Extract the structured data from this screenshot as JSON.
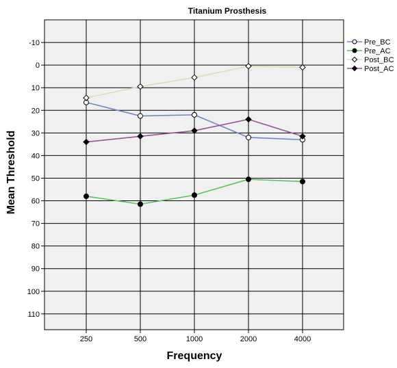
{
  "chart_data": {
    "type": "line",
    "title": "Titanium Prosthesis",
    "xlabel": "Frequency",
    "ylabel": "Mean Threshold",
    "categories": [
      "250",
      "500",
      "1000",
      "2000",
      "4000"
    ],
    "y_ticks": [
      "-10",
      "0",
      "10",
      "20",
      "30",
      "40",
      "50",
      "60",
      "70",
      "80",
      "90",
      "100",
      "110"
    ],
    "y_tick_values": [
      -10,
      0,
      10,
      20,
      30,
      40,
      50,
      60,
      70,
      80,
      90,
      100,
      110
    ],
    "ylim": [
      -20,
      117
    ],
    "y_inverted": true,
    "grid": true,
    "legend_position": "right",
    "series": [
      {
        "name": "Pre_BC",
        "values": [
          16.5,
          22.5,
          22,
          32,
          33
        ],
        "color": "#6f86c4",
        "marker": "circle-open"
      },
      {
        "name": "Pre_AC",
        "values": [
          58,
          61.5,
          57.5,
          50.5,
          51.5
        ],
        "color": "#5cc25c",
        "marker": "circle-filled"
      },
      {
        "name": "Post_BC",
        "values": [
          14.5,
          9.5,
          5.5,
          0.5,
          1
        ],
        "color": "#e2dbb5",
        "marker": "diamond-open"
      },
      {
        "name": "Post_AC",
        "values": [
          34,
          31.5,
          29,
          24,
          31.5
        ],
        "color": "#9b519b",
        "marker": "diamond-filled"
      }
    ]
  }
}
